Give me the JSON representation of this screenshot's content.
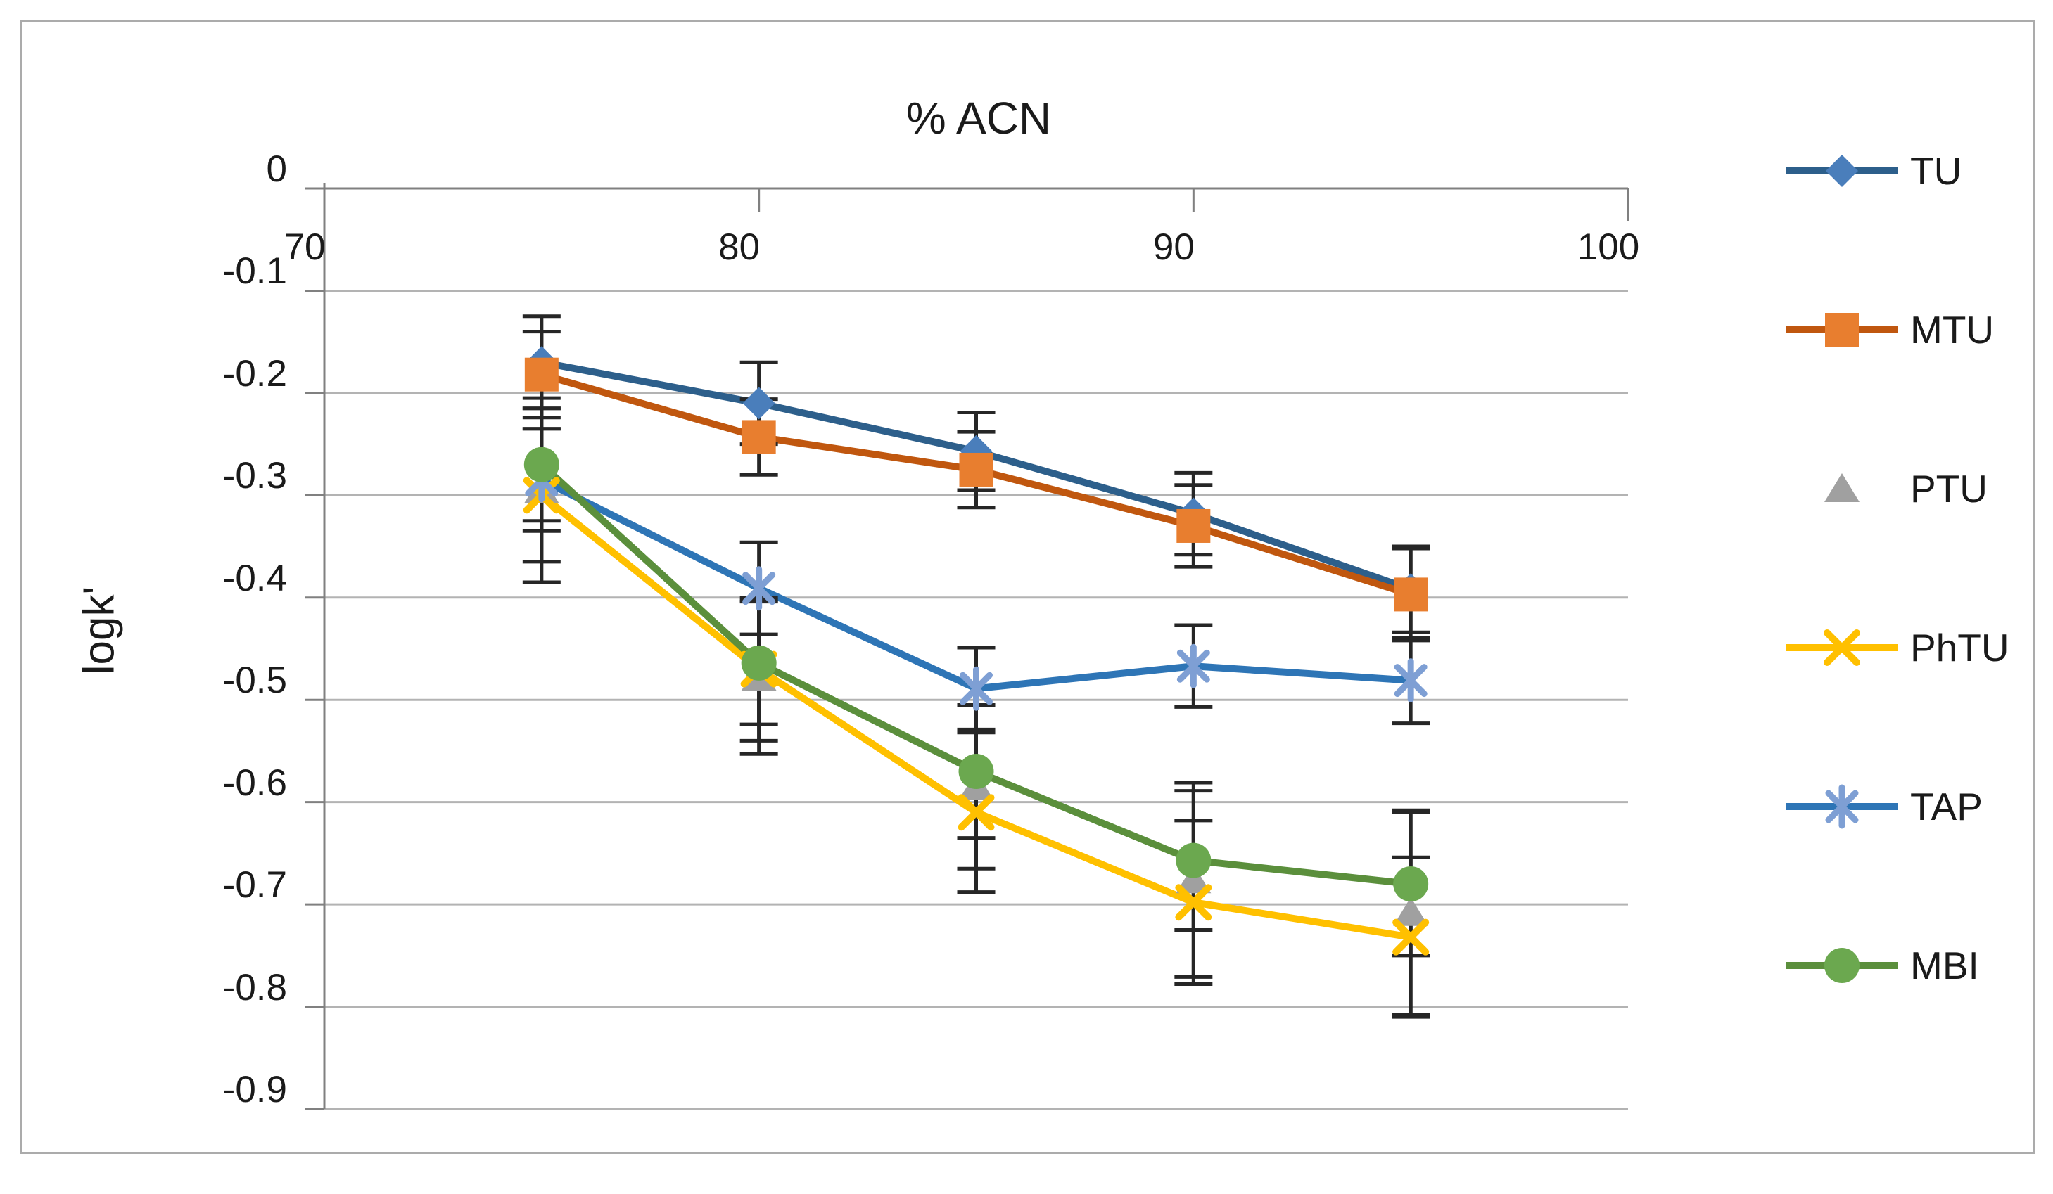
{
  "figure": {
    "background": "#FFFFFF",
    "border_color": "#ABABAB"
  },
  "chart_data": {
    "type": "line",
    "title": "% ACN",
    "ylabel": "logk'",
    "x": [
      75,
      80,
      85,
      90,
      95
    ],
    "x_axis": {
      "min": 70,
      "max": 100,
      "tick_values": [
        70,
        80,
        90,
        100
      ],
      "tick_labels": [
        "70",
        "80",
        "90",
        "100"
      ],
      "label_position": "top"
    },
    "y_axis": {
      "min": -0.9,
      "max": 0,
      "tick_values": [
        0,
        -0.1,
        -0.2,
        -0.3,
        -0.4,
        -0.5,
        -0.6,
        -0.7,
        -0.8,
        -0.9
      ],
      "tick_labels": [
        "0",
        "-0.1",
        "-0.2",
        "-0.3",
        "-0.4",
        "-0.5",
        "-0.6",
        "-0.7",
        "-0.8",
        "-0.9"
      ]
    },
    "grid": true,
    "legend_position": "right",
    "error_bar_color": "#262626",
    "axis_color": "#808080",
    "gridline_color": "#B3B3B3",
    "series": [
      {
        "name": "TU",
        "marker": "diamond",
        "line_color": "#2D5F8B",
        "marker_color": "#4A7EBB",
        "values": [
          -0.17,
          -0.21,
          -0.257,
          -0.318,
          -0.392
        ],
        "errors": [
          0.045,
          0.04,
          0.038,
          0.04,
          0.042
        ]
      },
      {
        "name": "MTU",
        "marker": "square",
        "line_color": "#C0570F",
        "marker_color": "#E87E2F",
        "values": [
          -0.182,
          -0.243,
          -0.275,
          -0.33,
          -0.397
        ],
        "errors": [
          0.042,
          0.037,
          0.037,
          0.04,
          0.045
        ]
      },
      {
        "name": "PTU",
        "marker": "triangle",
        "line_color": null,
        "marker_color": "#A0A0A0",
        "values": [
          -0.295,
          -0.478,
          -0.585,
          -0.676,
          -0.708
        ],
        "errors": [
          0.09,
          0.075,
          0.08,
          0.095,
          0.1
        ]
      },
      {
        "name": "PhTU",
        "marker": "x",
        "line_color": "#FFC000",
        "marker_color": "#FFC000",
        "values": [
          -0.3,
          -0.47,
          -0.61,
          -0.698,
          -0.732
        ],
        "errors": [
          0.065,
          0.07,
          0.078,
          0.08,
          0.078
        ]
      },
      {
        "name": "TAP",
        "marker": "asterisk",
        "line_color": "#2E75B6",
        "marker_color": "#7E9FD4",
        "values": [
          -0.285,
          -0.391,
          -0.489,
          -0.467,
          -0.481
        ],
        "errors": [
          0.05,
          0.045,
          0.04,
          0.04,
          0.042
        ]
      },
      {
        "name": "MBI",
        "marker": "circle",
        "line_color": "#5B8F3C",
        "marker_color": "#6BA84F",
        "values": [
          -0.27,
          -0.464,
          -0.57,
          -0.657,
          -0.68
        ],
        "errors": [
          0.055,
          0.06,
          0.065,
          0.068,
          0.07
        ]
      }
    ]
  }
}
